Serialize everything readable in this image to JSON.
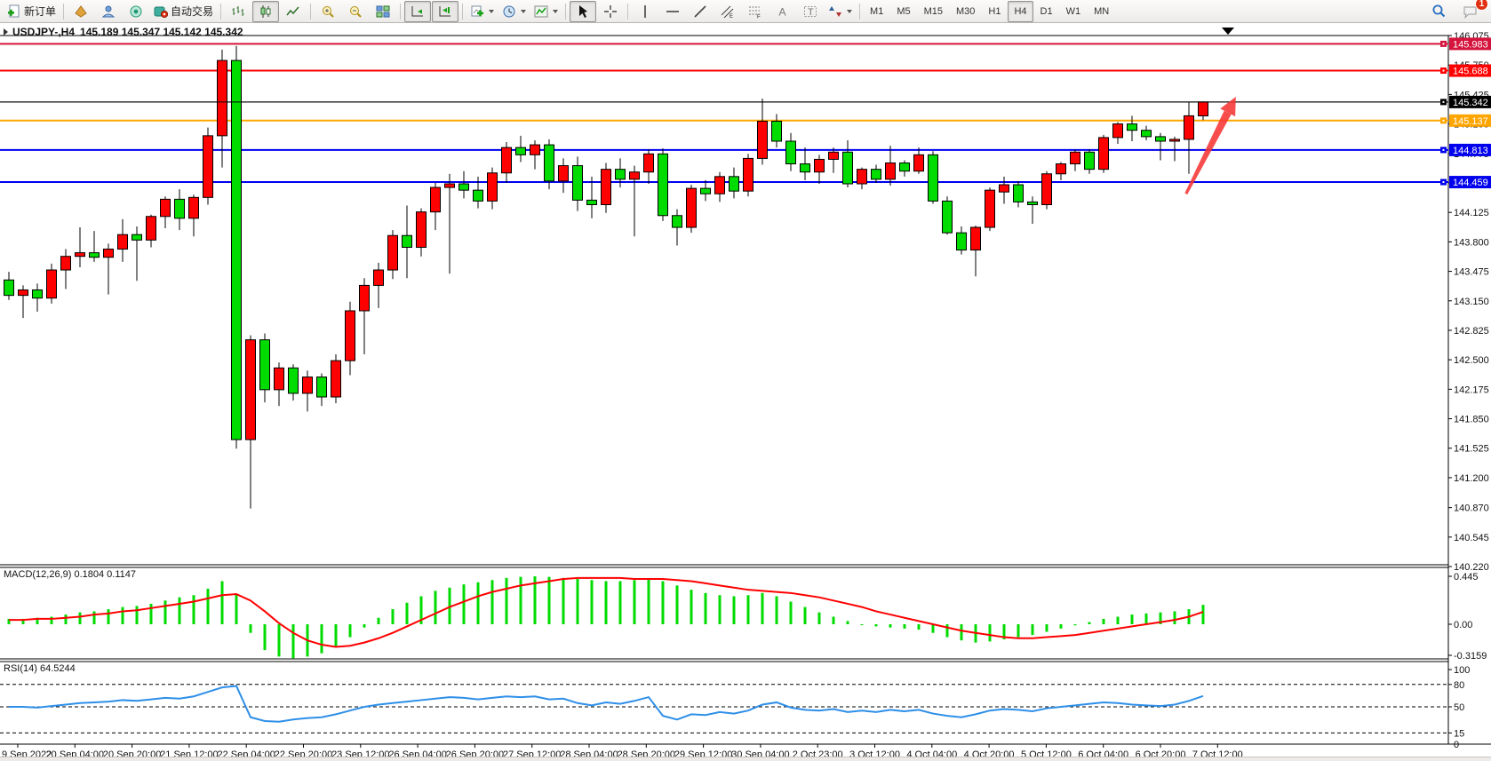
{
  "toolbar": {
    "new_order": "新订单",
    "auto_trading": "自动交易",
    "timeframes": [
      "M1",
      "M5",
      "M15",
      "M30",
      "H1",
      "H4",
      "D1",
      "W1",
      "MN"
    ],
    "active_timeframe": "H4",
    "notification_badge": "1"
  },
  "chart": {
    "symbol_period": "USDJPY-,H4",
    "ohlc_text": "145.189 145.347 145.142 145.342",
    "macd_label": "MACD(12,26,9) 0.1804 0.1147",
    "rsi_label": "RSI(14) 64.5244"
  },
  "chart_data": [
    {
      "type": "candlestick",
      "title": "USDJPY-,H4",
      "bull_color": "#ff0000",
      "bear_color": "#00db00",
      "ylim": [
        140.24,
        146.075
      ],
      "y_ticks": [
        "146.075",
        "145.750",
        "145.425",
        "145.100",
        "144.775",
        "144.450",
        "144.125",
        "143.800",
        "143.475",
        "143.150",
        "142.825",
        "142.500",
        "142.175",
        "141.850",
        "141.525",
        "141.200",
        "140.870",
        "140.545",
        "140.220"
      ],
      "x_labels": [
        "9 Sep 2022",
        "20 Sep 04:00",
        "20 Sep 20:00",
        "21 Sep 12:00",
        "22 Sep 04:00",
        "22 Sep 20:00",
        "23 Sep 12:00",
        "26 Sep 04:00",
        "26 Sep 20:00",
        "27 Sep 12:00",
        "28 Sep 04:00",
        "28 Sep 20:00",
        "29 Sep 12:00",
        "30 Sep 04:00",
        "2 Oct 23:00",
        "3 Oct 12:00",
        "4 Oct 04:00",
        "4 Oct 20:00",
        "5 Oct 12:00",
        "6 Oct 04:00",
        "6 Oct 20:00",
        "7 Oct 12:00"
      ],
      "ohlc": [
        [
          143.38,
          143.47,
          143.16,
          143.21
        ],
        [
          143.21,
          143.32,
          142.96,
          143.27
        ],
        [
          143.27,
          143.34,
          143.03,
          143.18
        ],
        [
          143.18,
          143.56,
          143.12,
          143.49
        ],
        [
          143.49,
          143.72,
          143.28,
          143.64
        ],
        [
          143.64,
          143.96,
          143.52,
          143.68
        ],
        [
          143.68,
          143.92,
          143.58,
          143.63
        ],
        [
          143.63,
          143.78,
          143.22,
          143.72
        ],
        [
          143.72,
          144.05,
          143.58,
          143.88
        ],
        [
          143.88,
          143.97,
          143.37,
          143.82
        ],
        [
          143.82,
          144.1,
          143.74,
          144.08
        ],
        [
          144.08,
          144.3,
          143.95,
          144.27
        ],
        [
          144.27,
          144.38,
          143.93,
          144.06
        ],
        [
          144.06,
          144.32,
          143.86,
          144.29
        ],
        [
          144.29,
          145.06,
          144.21,
          144.97
        ],
        [
          144.97,
          145.92,
          144.62,
          145.8
        ],
        [
          145.8,
          145.96,
          141.52,
          141.62
        ],
        [
          141.62,
          142.77,
          140.86,
          142.72
        ],
        [
          142.72,
          142.79,
          142.03,
          142.17
        ],
        [
          142.17,
          142.47,
          141.99,
          142.41
        ],
        [
          142.41,
          142.45,
          142.05,
          142.13
        ],
        [
          142.13,
          142.38,
          141.93,
          142.31
        ],
        [
          142.31,
          142.35,
          141.99,
          142.09
        ],
        [
          142.09,
          142.56,
          142.02,
          142.49
        ],
        [
          142.49,
          143.14,
          142.33,
          143.04
        ],
        [
          143.04,
          143.4,
          142.56,
          143.32
        ],
        [
          143.32,
          143.57,
          143.07,
          143.49
        ],
        [
          143.49,
          143.93,
          143.39,
          143.87
        ],
        [
          143.87,
          144.2,
          143.4,
          143.74
        ],
        [
          143.74,
          144.17,
          143.64,
          144.13
        ],
        [
          144.13,
          144.45,
          143.93,
          144.4
        ],
        [
          144.4,
          144.55,
          143.45,
          144.44
        ],
        [
          144.44,
          144.58,
          144.28,
          144.37
        ],
        [
          144.37,
          144.52,
          144.17,
          144.25
        ],
        [
          144.25,
          144.62,
          144.16,
          144.56
        ],
        [
          144.56,
          144.9,
          144.45,
          144.84
        ],
        [
          144.84,
          144.97,
          144.68,
          144.76
        ],
        [
          144.76,
          144.92,
          144.6,
          144.87
        ],
        [
          144.87,
          144.93,
          144.38,
          144.47
        ],
        [
          144.47,
          144.72,
          144.34,
          144.64
        ],
        [
          144.64,
          144.74,
          144.14,
          144.26
        ],
        [
          144.26,
          144.52,
          144.06,
          144.21
        ],
        [
          144.21,
          144.67,
          144.12,
          144.6
        ],
        [
          144.6,
          144.72,
          144.4,
          144.49
        ],
        [
          144.49,
          144.64,
          143.86,
          144.57
        ],
        [
          144.57,
          144.82,
          144.44,
          144.77
        ],
        [
          144.77,
          144.83,
          144.03,
          144.09
        ],
        [
          144.09,
          144.16,
          143.76,
          143.96
        ],
        [
          143.96,
          144.43,
          143.9,
          144.39
        ],
        [
          144.39,
          144.48,
          144.25,
          144.33
        ],
        [
          144.33,
          144.57,
          144.24,
          144.52
        ],
        [
          144.52,
          144.62,
          144.28,
          144.36
        ],
        [
          144.36,
          144.77,
          144.3,
          144.72
        ],
        [
          144.72,
          145.38,
          144.65,
          145.13
        ],
        [
          145.13,
          145.21,
          144.84,
          144.91
        ],
        [
          144.91,
          145.0,
          144.58,
          144.66
        ],
        [
          144.66,
          144.84,
          144.48,
          144.57
        ],
        [
          144.57,
          144.76,
          144.44,
          144.71
        ],
        [
          144.71,
          144.84,
          144.56,
          144.79
        ],
        [
          144.79,
          144.92,
          144.4,
          144.44
        ],
        [
          144.44,
          144.62,
          144.38,
          144.6
        ],
        [
          144.6,
          144.65,
          144.45,
          144.49
        ],
        [
          144.49,
          144.86,
          144.42,
          144.67
        ],
        [
          144.67,
          144.7,
          144.52,
          144.58
        ],
        [
          144.58,
          144.84,
          144.55,
          144.76
        ],
        [
          144.76,
          144.8,
          144.22,
          144.25
        ],
        [
          144.25,
          144.3,
          143.88,
          143.9
        ],
        [
          143.9,
          143.97,
          143.66,
          143.71
        ],
        [
          143.71,
          143.98,
          143.42,
          143.96
        ],
        [
          143.96,
          144.4,
          143.92,
          144.37
        ],
        [
          144.35,
          144.52,
          144.22,
          144.43
        ],
        [
          144.43,
          144.47,
          144.18,
          144.24
        ],
        [
          144.24,
          144.3,
          144.0,
          144.21
        ],
        [
          144.21,
          144.58,
          144.16,
          144.55
        ],
        [
          144.55,
          144.68,
          144.48,
          144.66
        ],
        [
          144.66,
          144.82,
          144.58,
          144.79
        ],
        [
          144.79,
          144.82,
          144.55,
          144.6
        ],
        [
          144.6,
          144.98,
          144.56,
          144.95
        ],
        [
          144.95,
          145.12,
          144.88,
          145.1
        ],
        [
          145.1,
          145.19,
          144.91,
          145.03
        ],
        [
          145.03,
          145.08,
          144.92,
          144.96
        ],
        [
          144.96,
          145.0,
          144.7,
          144.91
        ],
        [
          144.91,
          144.96,
          144.69,
          144.93
        ],
        [
          144.93,
          145.34,
          144.55,
          145.19
        ],
        [
          145.189,
          145.347,
          145.142,
          145.342
        ]
      ],
      "hlines": [
        {
          "price": 145.983,
          "color": "#d4143c",
          "label": "145.983"
        },
        {
          "price": 145.688,
          "color": "#ff0000",
          "label": "145.688"
        },
        {
          "price": 145.342,
          "color": "#000000",
          "label": "145.342",
          "role": "current-price"
        },
        {
          "price": 145.137,
          "color": "#ffa500",
          "label": "145.137"
        },
        {
          "price": 144.813,
          "color": "#0000ee",
          "label": "144.813"
        },
        {
          "price": 144.459,
          "color": "#0000ee",
          "label": "144.459"
        }
      ],
      "arrow": {
        "x1_index": 82.8,
        "y1_price": 144.33,
        "x2_index": 86.3,
        "y2_price": 145.4,
        "color": "#f63535"
      }
    },
    {
      "type": "bar",
      "name": "MACD",
      "params": "(12,26,9)",
      "current": "0.1804 0.1147",
      "histogram_color": "#00db00",
      "signal_color": "#ff0000",
      "y_ticks": [
        "0.445",
        "0.00",
        "-0.3159"
      ],
      "ylim": [
        -0.36,
        0.52
      ],
      "values": [
        0.05,
        0.05,
        0.06,
        0.07,
        0.09,
        0.11,
        0.12,
        0.14,
        0.16,
        0.17,
        0.19,
        0.22,
        0.25,
        0.27,
        0.33,
        0.4,
        0.28,
        -0.08,
        -0.24,
        -0.3,
        -0.3159,
        -0.3,
        -0.27,
        -0.21,
        -0.12,
        -0.03,
        0.06,
        0.14,
        0.2,
        0.26,
        0.31,
        0.34,
        0.37,
        0.39,
        0.41,
        0.43,
        0.44,
        0.445,
        0.44,
        0.43,
        0.42,
        0.41,
        0.4,
        0.4,
        0.41,
        0.42,
        0.4,
        0.36,
        0.32,
        0.29,
        0.27,
        0.26,
        0.27,
        0.29,
        0.26,
        0.21,
        0.16,
        0.11,
        0.07,
        0.03,
        0.0,
        -0.02,
        -0.03,
        -0.04,
        -0.05,
        -0.08,
        -0.12,
        -0.15,
        -0.17,
        -0.16,
        -0.14,
        -0.12,
        -0.1,
        -0.07,
        -0.04,
        -0.01,
        0.02,
        0.05,
        0.07,
        0.09,
        0.1,
        0.11,
        0.12,
        0.14,
        0.18
      ],
      "signal": [
        0.04,
        0.04,
        0.05,
        0.05,
        0.06,
        0.07,
        0.09,
        0.1,
        0.12,
        0.13,
        0.15,
        0.17,
        0.19,
        0.21,
        0.24,
        0.27,
        0.28,
        0.22,
        0.12,
        0.01,
        -0.08,
        -0.15,
        -0.19,
        -0.21,
        -0.2,
        -0.17,
        -0.13,
        -0.08,
        -0.02,
        0.04,
        0.1,
        0.16,
        0.21,
        0.26,
        0.3,
        0.33,
        0.36,
        0.38,
        0.4,
        0.42,
        0.43,
        0.43,
        0.43,
        0.43,
        0.42,
        0.42,
        0.42,
        0.41,
        0.4,
        0.38,
        0.36,
        0.34,
        0.32,
        0.31,
        0.3,
        0.29,
        0.27,
        0.25,
        0.22,
        0.19,
        0.16,
        0.12,
        0.09,
        0.06,
        0.03,
        0.0,
        -0.03,
        -0.06,
        -0.08,
        -0.1,
        -0.12,
        -0.13,
        -0.13,
        -0.12,
        -0.11,
        -0.1,
        -0.08,
        -0.06,
        -0.04,
        -0.02,
        0.0,
        0.02,
        0.04,
        0.07,
        0.115
      ]
    },
    {
      "type": "line",
      "name": "RSI",
      "params": "(14)",
      "current": "64.5244",
      "line_color": "#2e8fe8",
      "levels": [
        80,
        50,
        15
      ],
      "y_ticks": [
        "100",
        "80",
        "50",
        "15",
        "0"
      ],
      "ylim": [
        0,
        100
      ],
      "values": [
        50,
        50,
        49,
        51,
        53,
        55,
        56,
        57,
        59,
        58,
        60,
        62,
        61,
        64,
        70,
        76,
        78,
        36,
        31,
        30,
        33,
        35,
        36,
        40,
        45,
        50,
        53,
        55,
        57,
        59,
        61,
        63,
        62,
        60,
        62,
        64,
        63,
        64,
        60,
        61,
        55,
        52,
        56,
        54,
        58,
        63,
        38,
        33,
        40,
        39,
        43,
        41,
        45,
        53,
        56,
        49,
        46,
        45,
        47,
        43,
        45,
        43,
        46,
        44,
        46,
        41,
        38,
        36,
        40,
        45,
        47,
        46,
        44,
        48,
        50,
        52,
        54,
        56,
        55,
        53,
        52,
        51,
        53,
        58,
        64.5
      ]
    }
  ]
}
